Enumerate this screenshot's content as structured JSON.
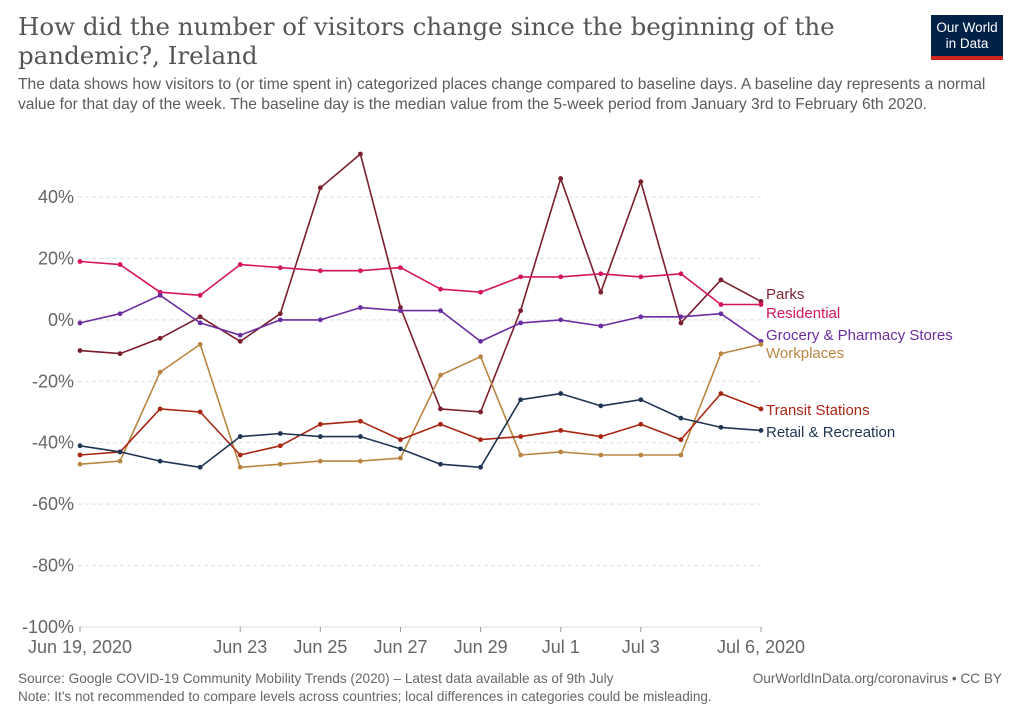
{
  "header": {
    "title": "How did the number of visitors change since the beginning of the pandemic?, Ireland",
    "subtitle": "The data shows how visitors to (or time spent in) categorized places change compared to baseline days. A baseline day represents a normal value for that day of the week. The baseline day is the median value from the 5-week period from January 3rd to February 6th 2020."
  },
  "logo": {
    "line1": "Our World",
    "line2": "in Data"
  },
  "footer": {
    "source": "Source: Google COVID-19 Community Mobility Trends (2020) – Latest data available as of 9th July",
    "url": "OurWorldInData.org/coronavirus • CC BY",
    "note": "Note: It's not recommended to compare levels across countries; local differences in categories could be misleading."
  },
  "chart_data": {
    "type": "line",
    "title": "How did the number of visitors change since the beginning of the pandemic?, Ireland",
    "xlabel": "",
    "ylabel": "",
    "ylim": [
      -100,
      50
    ],
    "x": [
      "Jun 19",
      "Jun 20",
      "Jun 21",
      "Jun 22",
      "Jun 23",
      "Jun 24",
      "Jun 25",
      "Jun 26",
      "Jun 27",
      "Jun 28",
      "Jun 29",
      "Jun 30",
      "Jul 1",
      "Jul 2",
      "Jul 3",
      "Jul 4",
      "Jul 5",
      "Jul 6"
    ],
    "x_tick_labels": [
      "Jun 19, 2020",
      "Jun 23",
      "Jun 25",
      "Jun 27",
      "Jun 29",
      "Jul 1",
      "Jul 3",
      "Jul 6, 2020"
    ],
    "x_tick_index": [
      0,
      4,
      6,
      8,
      10,
      12,
      14,
      17
    ],
    "y_ticks": [
      40,
      20,
      0,
      -20,
      -40,
      -60,
      -80,
      -100
    ],
    "y_tick_labels": [
      "40%",
      "20%",
      "0%",
      "-20%",
      "-40%",
      "-60%",
      "-80%",
      "-100%"
    ],
    "grid": true,
    "legend_position": "right, at line ends",
    "series": [
      {
        "name": "Parks",
        "color": "#7b1e2e",
        "values": [
          -10,
          -11,
          -6,
          1,
          -7,
          2,
          43,
          54,
          4,
          -29,
          -30,
          3,
          46,
          9,
          45,
          -1,
          13,
          6
        ]
      },
      {
        "name": "Residential",
        "color": "#d6145e",
        "values": [
          19,
          18,
          9,
          8,
          18,
          17,
          16,
          16,
          17,
          10,
          9,
          14,
          14,
          15,
          14,
          15,
          5,
          5
        ]
      },
      {
        "name": "Grocery & Pharmacy Stores",
        "color": "#6b2d9f",
        "values": [
          -1,
          2,
          8,
          -1,
          -5,
          0,
          0,
          4,
          3,
          3,
          -7,
          -1,
          0,
          -2,
          1,
          1,
          2,
          -7
        ]
      },
      {
        "name": "Workplaces",
        "color": "#b98642",
        "values": [
          -47,
          -46,
          -17,
          -8,
          -48,
          -47,
          -46,
          -46,
          -45,
          -18,
          -12,
          -44,
          -43,
          -44,
          -44,
          -44,
          -11,
          -8
        ]
      },
      {
        "name": "Transit Stations",
        "color": "#a82612",
        "values": [
          -44,
          -43,
          -29,
          -30,
          -44,
          -41,
          -34,
          -33,
          -39,
          -34,
          -39,
          -38,
          -36,
          -38,
          -34,
          -39,
          -24,
          -29
        ]
      },
      {
        "name": "Retail & Recreation",
        "color": "#1f3552",
        "values": [
          -41,
          -43,
          -46,
          -48,
          -38,
          -37,
          -38,
          -38,
          -42,
          -47,
          -48,
          -26,
          -24,
          -28,
          -26,
          -32,
          -35,
          -36
        ]
      }
    ]
  }
}
